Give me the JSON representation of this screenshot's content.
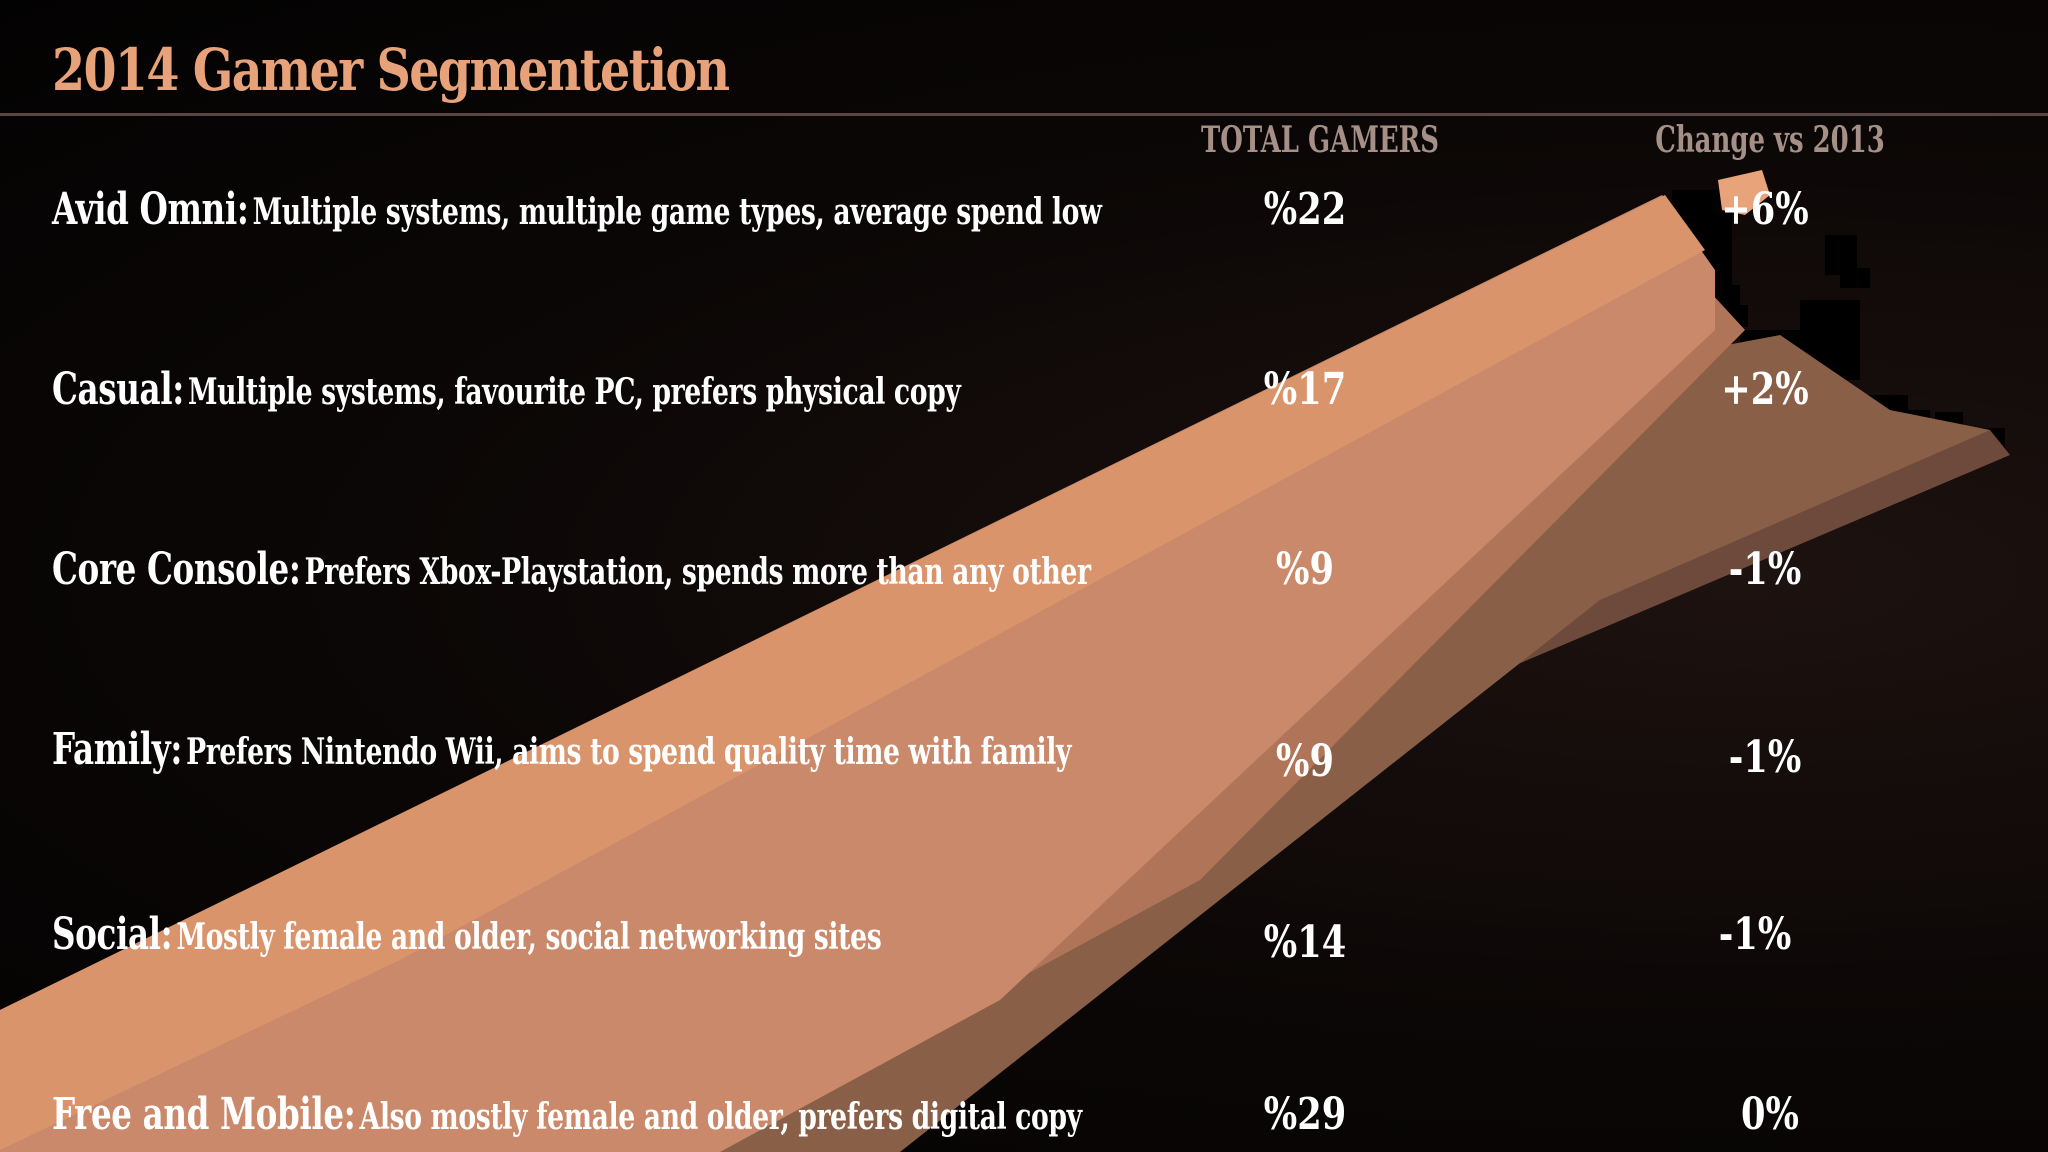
{
  "title": "2014 Gamer Segmentetion",
  "columns": {
    "total": "TOTAL GAMERS",
    "change": "Change vs 2013"
  },
  "colors": {
    "title": "#e7a27a",
    "header_text": "#a58f86",
    "body_text": "#ffffff",
    "rule": "#5a4541",
    "beam_light": "#d9946c",
    "beam_mid": "#b8795a",
    "beam_dark": "#6d4a3c"
  },
  "segments": [
    {
      "name": "Avid Omni:",
      "description": "Multiple systems, multiple game types, average spend low",
      "total": "%22",
      "change": "+6%"
    },
    {
      "name": "Casual:",
      "description": "Multiple systems, favourite PC, prefers physical copy",
      "total": "%17",
      "change": "+2%"
    },
    {
      "name": "Core Console:",
      "description": "Prefers Xbox-Playstation, spends more than any other",
      "total": "%9",
      "change": "-1%"
    },
    {
      "name": "Family:",
      "description": "Prefers Nintendo Wii, aims to spend quality time with family",
      "total": "%9",
      "change": "-1%"
    },
    {
      "name": "Social:",
      "description": "Mostly female and older, social networking sites",
      "total": "%14",
      "change": "-1%"
    },
    {
      "name": "Free and Mobile:",
      "description": "Also mostly female and older, prefers digital copy",
      "total": "%29",
      "change": "0%"
    }
  ]
}
